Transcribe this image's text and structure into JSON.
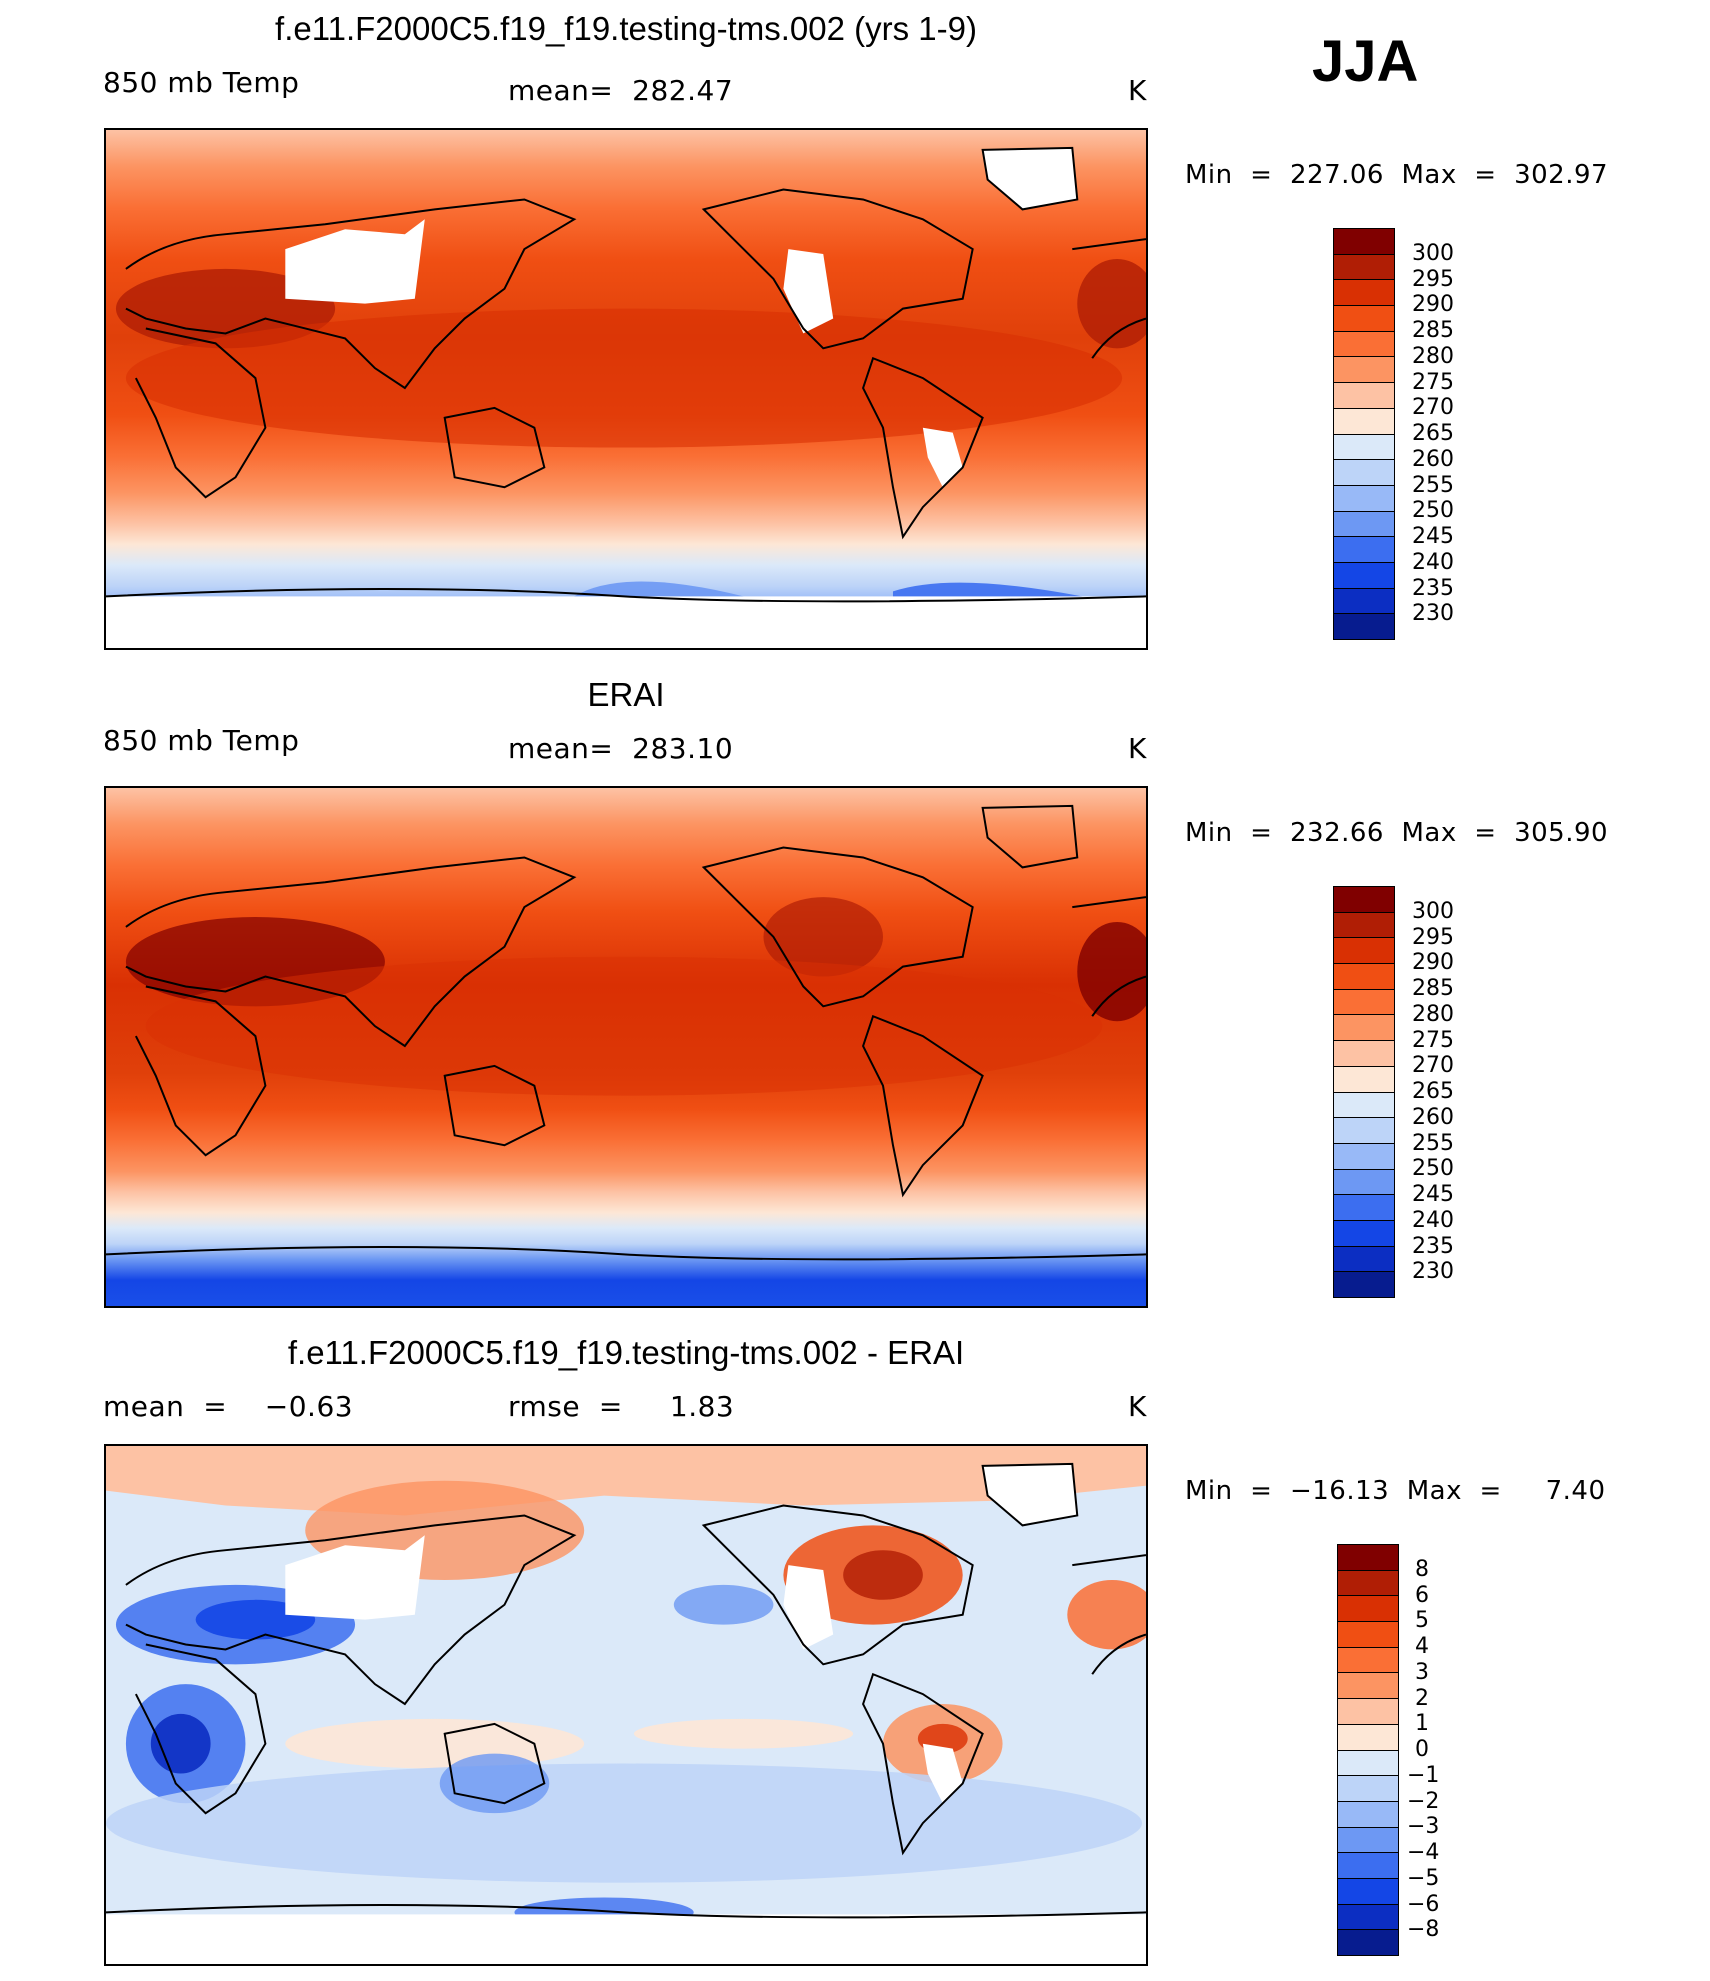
{
  "season": "JJA",
  "panels": [
    {
      "title": "f.e11.F2000C5.f19_f19.testing-tms.002 (yrs 1-9)",
      "left_label": "850 mb Temp",
      "center_label": "mean=  282.47",
      "units": "K",
      "minmax": "Min  =  227.06  Max  =  302.97",
      "colorbar_labels": [
        "300",
        "295",
        "290",
        "285",
        "280",
        "275",
        "270",
        "265",
        "260",
        "255",
        "250",
        "245",
        "240",
        "235",
        "230"
      ]
    },
    {
      "title": "ERAI",
      "left_label": "850 mb Temp",
      "center_label": "mean=  283.10",
      "units": "K",
      "minmax": "Min  =  232.66  Max  =  305.90",
      "colorbar_labels": [
        "300",
        "295",
        "290",
        "285",
        "280",
        "275",
        "270",
        "265",
        "260",
        "255",
        "250",
        "245",
        "240",
        "235",
        "230"
      ]
    },
    {
      "title": "f.e11.F2000C5.f19_f19.testing-tms.002 - ERAI",
      "left_label": "mean  =    −0.63",
      "center_label": "rmse  =     1.83",
      "units": "K",
      "minmax": "Min  =  −16.13  Max  =     7.40",
      "colorbar_labels": [
        "8",
        "6",
        "5",
        "4",
        "3",
        "2",
        "1",
        "0",
        "−1",
        "−2",
        "−3",
        "−4",
        "−5",
        "−6",
        "−8"
      ]
    }
  ],
  "colors": {
    "abs_scale": [
      "#800000",
      "#b01e05",
      "#d93003",
      "#f04f13",
      "#fa6f35",
      "#fc9462",
      "#fdc2a4",
      "#fde7d6",
      "#dbe9f9",
      "#bdd4f8",
      "#98b9f7",
      "#6d98f3",
      "#3c6ef0",
      "#1446e6",
      "#0c2ec2",
      "#071c8f"
    ],
    "diff_scale": [
      "#800000",
      "#b01e05",
      "#d93003",
      "#f04f13",
      "#fa6f35",
      "#fc9462",
      "#fdc2a4",
      "#fde7d6",
      "#dbe9f9",
      "#bdd4f8",
      "#98b9f7",
      "#6d98f3",
      "#3c6ef0",
      "#1446e6",
      "#0c2ec2",
      "#071c8f"
    ]
  }
}
